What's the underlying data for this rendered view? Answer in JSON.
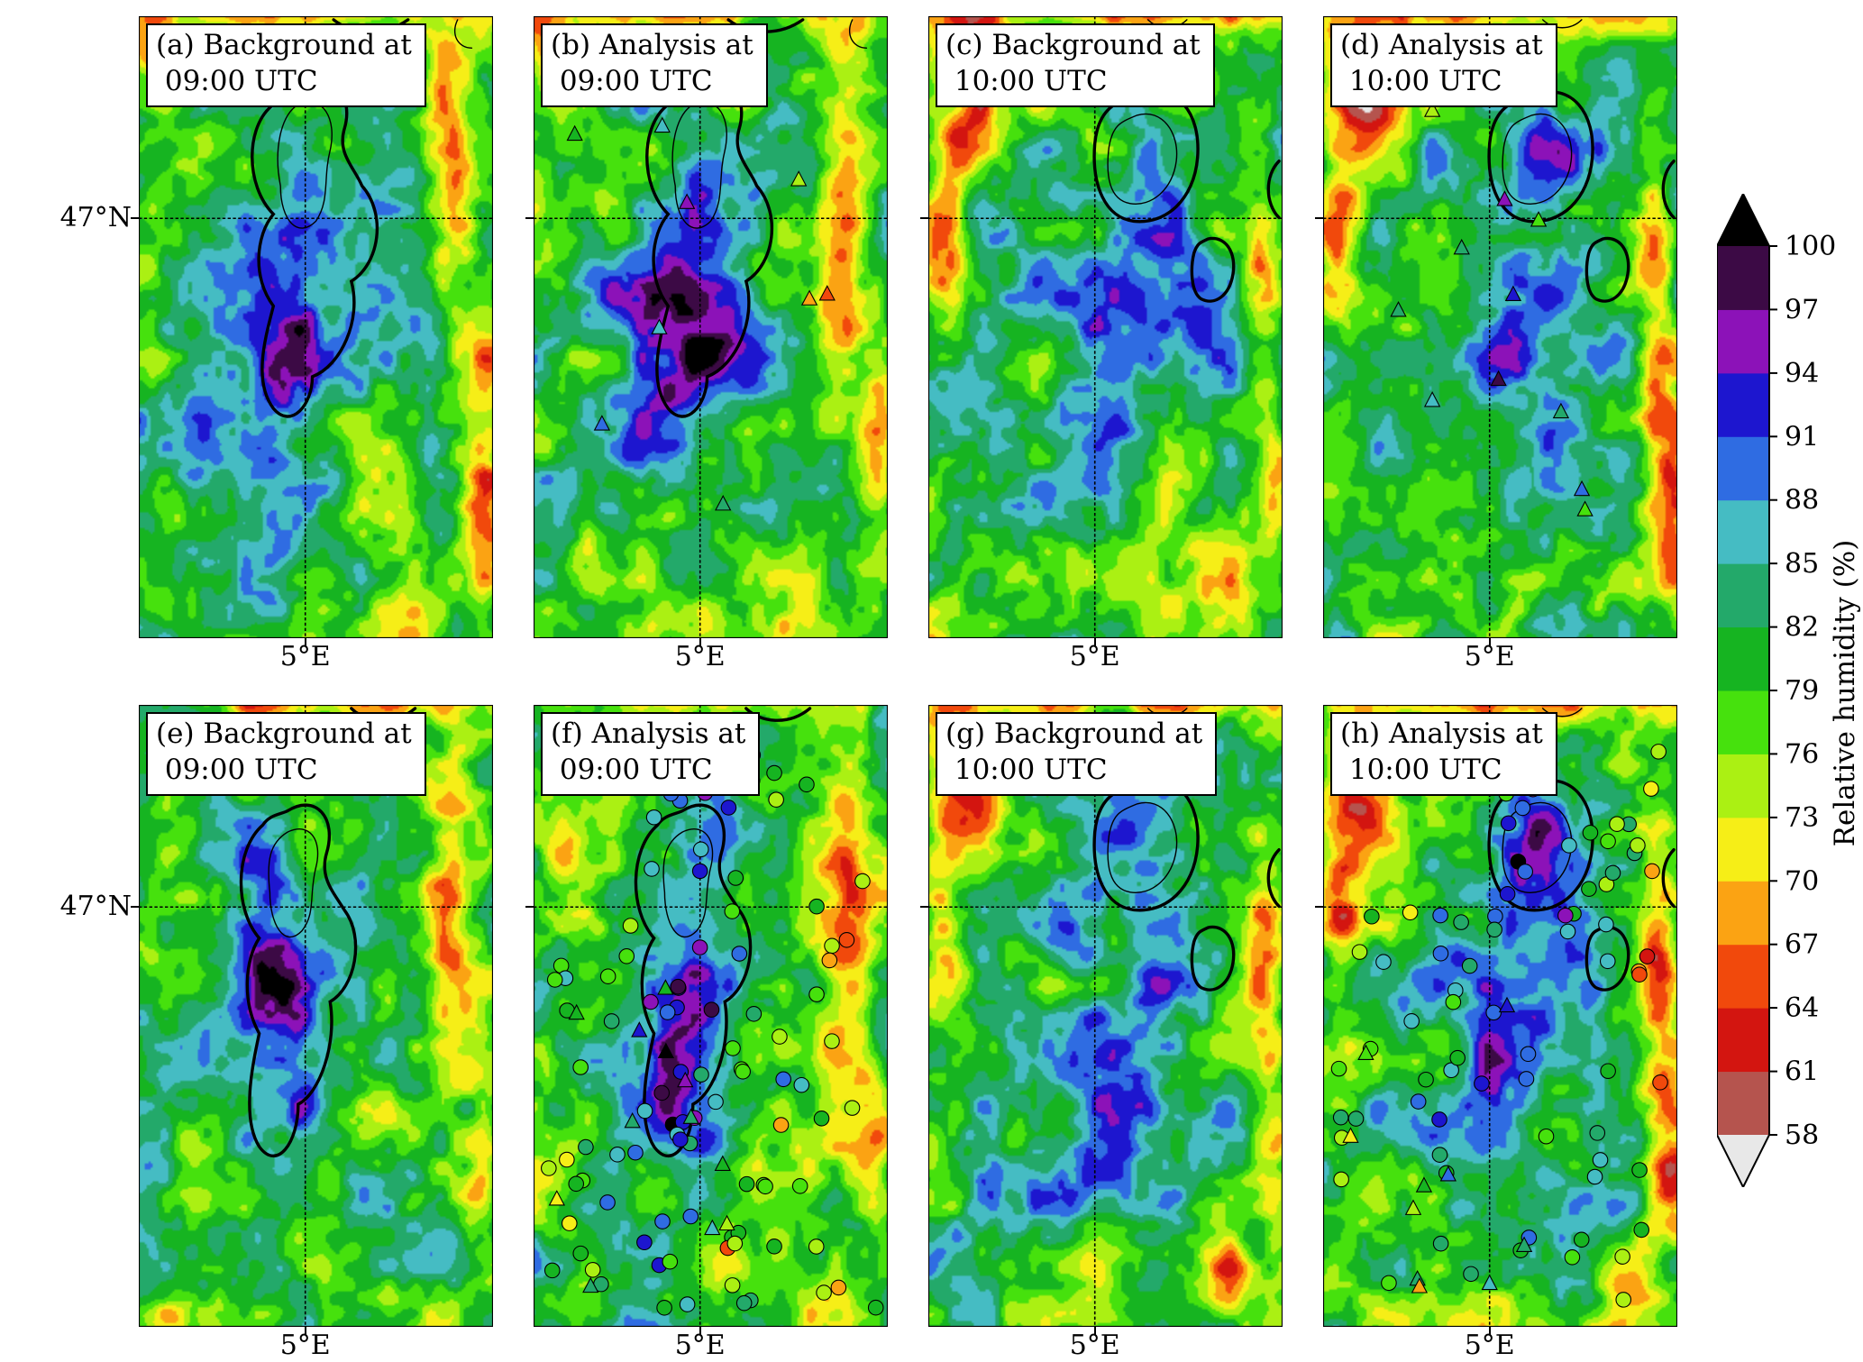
{
  "figure": {
    "y_tick_label": "47°N",
    "panels": [
      {
        "id": "a",
        "title_line1": "(a) Background at",
        "title_line2": " 09:00 UTC",
        "x_tick_label": "5°E",
        "field": "wet",
        "markers": "none"
      },
      {
        "id": "b",
        "title_line1": "(b) Analysis at",
        "title_line2": " 09:00 UTC",
        "x_tick_label": "5°E",
        "field": "wet",
        "markers": "triangles"
      },
      {
        "id": "c",
        "title_line1": "(c) Background at",
        "title_line2": " 10:00 UTC",
        "x_tick_label": "5°E",
        "field": "moist",
        "markers": "none"
      },
      {
        "id": "d",
        "title_line1": "(d) Analysis at",
        "title_line2": " 10:00 UTC",
        "x_tick_label": "5°E",
        "field": "moist2",
        "markers": "triangles"
      },
      {
        "id": "e",
        "title_line1": "(e) Background at",
        "title_line2": " 09:00 UTC",
        "x_tick_label": "5°E",
        "field": "wet2",
        "markers": "none"
      },
      {
        "id": "f",
        "title_line1": "(f) Analysis at",
        "title_line2": " 09:00 UTC",
        "x_tick_label": "5°E",
        "field": "wet2",
        "markers": "circles+triangles"
      },
      {
        "id": "g",
        "title_line1": "(g) Background at",
        "title_line2": " 10:00 UTC",
        "x_tick_label": "5°E",
        "field": "moist",
        "markers": "none"
      },
      {
        "id": "h",
        "title_line1": "(h) Analysis at",
        "title_line2": " 10:00 UTC",
        "x_tick_label": "5°E",
        "field": "moist2",
        "markers": "circles+triangles"
      }
    ],
    "colorbar": {
      "label": "Relative humidity (%)",
      "levels": [
        58,
        61,
        64,
        67,
        70,
        73,
        76,
        79,
        82,
        85,
        88,
        91,
        94,
        97,
        100
      ],
      "band_colors_low_to_high": [
        "#b5544e",
        "#d31510",
        "#f1490c",
        "#fba313",
        "#f6ee17",
        "#abf013",
        "#46e10d",
        "#16b421",
        "#23a96a",
        "#45bcc3",
        "#2f6ce2",
        "#1d16cf",
        "#8c12b8",
        "#3c0a45"
      ],
      "under_arrow_color": "#e8e8e8",
      "over_arrow_color": "#000000"
    }
  },
  "chart_data": {
    "type": "heatmap",
    "panels": [
      "(a) Background at 09:00 UTC",
      "(b) Analysis at 09:00 UTC",
      "(c) Background at 10:00 UTC",
      "(d) Analysis at 10:00 UTC",
      "(e) Background at 09:00 UTC",
      "(f) Analysis at 09:00 UTC",
      "(g) Background at 10:00 UTC",
      "(h) Analysis at 10:00 UTC"
    ],
    "colorbar_label": "Relative humidity (%)",
    "colorbar_ticks": [
      58,
      61,
      64,
      67,
      70,
      73,
      76,
      79,
      82,
      85,
      88,
      91,
      94,
      97,
      100
    ],
    "x_tick_labels": [
      "5°E"
    ],
    "y_tick_labels": [
      "47°N"
    ],
    "layout": "2 rows x 4 columns of relative-humidity maps; dashed gridlines at 5°E and 47°N; thick and thin black contour overlays; observation markers (triangles in panels b,d,f,h and filled circles in panels f,h) colored by relative humidity"
  }
}
